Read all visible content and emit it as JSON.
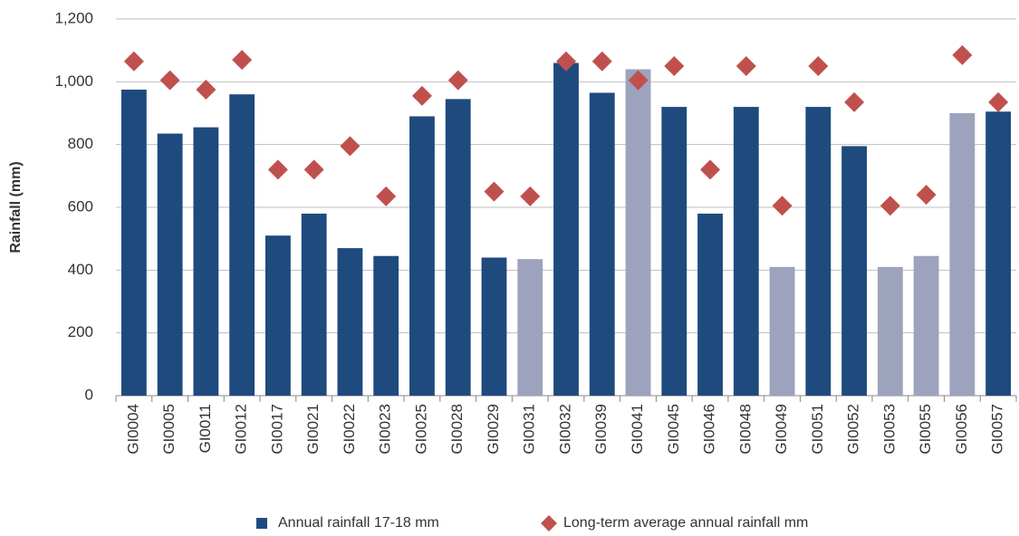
{
  "chart_data": {
    "type": "bar_marker",
    "y_label": "Rainfall (mm)",
    "categories": [
      "GI0004",
      "GI0005",
      "GI0011",
      "GI0012",
      "GI0017",
      "GI0021",
      "GI0022",
      "GI0023",
      "GI0025",
      "GI0028",
      "GI0029",
      "GI0031",
      "GI0032",
      "GI0039",
      "GI0041",
      "GI0045",
      "GI0046",
      "GI0048",
      "GI0049",
      "GI0051",
      "GI0052",
      "GI0053",
      "GI0055",
      "GI0056",
      "GI0057"
    ],
    "series": [
      {
        "name": "Annual rainfall 17-18 mm",
        "color": "#1f4a7e",
        "colors": [
          "#1f4a7e",
          "#1f4a7e",
          "#1f4a7e",
          "#1f4a7e",
          "#1f4a7e",
          "#1f4a7e",
          "#1f4a7e",
          "#1f4a7e",
          "#1f4a7e",
          "#1f4a7e",
          "#1f4a7e",
          "#9da2bd",
          "#1f4a7e",
          "#1f4a7e",
          "#9da2bd",
          "#1f4a7e",
          "#1f4a7e",
          "#1f4a7e",
          "#9da2bd",
          "#1f4a7e",
          "#1f4a7e",
          "#9da2bd",
          "#9da2bd",
          "#9da2bd",
          "#1f4a7e"
        ],
        "values": [
          975,
          835,
          855,
          960,
          510,
          580,
          470,
          445,
          890,
          945,
          440,
          435,
          1060,
          965,
          1040,
          920,
          580,
          920,
          410,
          920,
          795,
          410,
          445,
          900,
          905
        ]
      },
      {
        "name": "Long-term average annual rainfall mm",
        "color": "#c0504d",
        "marker": "diamond",
        "values": [
          1065,
          1005,
          975,
          1070,
          720,
          720,
          795,
          635,
          955,
          1005,
          650,
          635,
          1065,
          1065,
          1005,
          1050,
          720,
          1050,
          605,
          1050,
          935,
          605,
          640,
          1085,
          935
        ]
      }
    ],
    "ylim": [
      0,
      1200
    ],
    "yticks": [
      0,
      200,
      400,
      600,
      800,
      {
        "value": 1000,
        "label": "1,000"
      },
      {
        "value": 1200,
        "label": "1,200"
      }
    ],
    "grid": true,
    "legend": "bottom"
  }
}
